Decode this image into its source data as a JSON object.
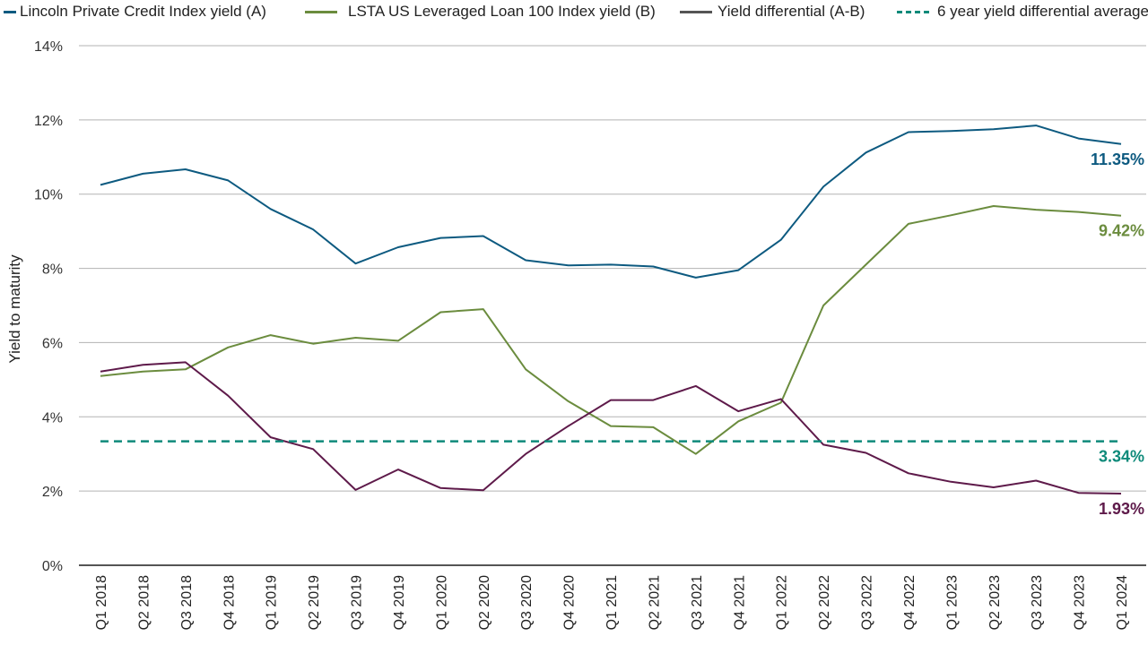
{
  "legend": {
    "items": [
      {
        "label": "Lincoln Private Credit Index yield (A)",
        "color": "#0d5a80",
        "style": "solid"
      },
      {
        "label": "LSTA US Leveraged Loan 100 Index yield (B)",
        "color": "#6b8c3e",
        "style": "solid"
      },
      {
        "label": "Yield differential (A-B)",
        "color": "#555555",
        "style": "solid"
      },
      {
        "label": "6 year yield differential average",
        "color": "#0e8a7a",
        "style": "dashed"
      }
    ]
  },
  "chart_data": {
    "type": "line",
    "ylabel": "Yield to maturity",
    "xlabel": "",
    "ylim": [
      0,
      14
    ],
    "yticks": [
      "0%",
      "2%",
      "4%",
      "6%",
      "8%",
      "10%",
      "12%",
      "14%"
    ],
    "categories": [
      "Q1 2018",
      "Q2 2018",
      "Q3 2018",
      "Q4 2018",
      "Q1 2019",
      "Q2 2019",
      "Q3 2019",
      "Q4 2019",
      "Q1 2020",
      "Q2 2020",
      "Q3 2020",
      "Q4 2020",
      "Q1 2021",
      "Q2 2021",
      "Q3 2021",
      "Q4 2021",
      "Q1 2022",
      "Q2 2022",
      "Q3 2022",
      "Q4 2022",
      "Q1 2023",
      "Q2 2023",
      "Q3 2023",
      "Q4 2023",
      "Q1 2024"
    ],
    "grid": true,
    "legend_position": "top",
    "series": [
      {
        "name": "Lincoln Private Credit Index yield (A)",
        "color": "#0d5a80",
        "end_label": "11.35%",
        "values": [
          10.25,
          10.55,
          10.67,
          10.37,
          9.6,
          9.05,
          8.13,
          8.57,
          8.82,
          8.87,
          8.22,
          8.08,
          8.1,
          8.05,
          7.75,
          7.95,
          8.77,
          10.2,
          11.12,
          11.67,
          11.7,
          11.75,
          11.85,
          11.5,
          11.35
        ]
      },
      {
        "name": "LSTA US Leveraged Loan 100 Index yield (B)",
        "color": "#6b8c3e",
        "end_label": "9.42%",
        "values": [
          5.1,
          5.22,
          5.28,
          5.87,
          6.2,
          5.97,
          6.13,
          6.05,
          6.82,
          6.9,
          5.28,
          4.42,
          3.75,
          3.72,
          3.0,
          3.88,
          4.38,
          7.0,
          8.1,
          9.2,
          9.43,
          9.68,
          9.58,
          9.52,
          9.42
        ]
      },
      {
        "name": "Yield differential (A-B)",
        "color": "#5e1a4a",
        "end_label": "1.93%",
        "values": [
          5.22,
          5.4,
          5.47,
          4.57,
          3.45,
          3.13,
          2.03,
          2.58,
          2.08,
          2.02,
          3.0,
          3.75,
          4.45,
          4.45,
          4.83,
          4.15,
          4.48,
          3.25,
          3.03,
          2.48,
          2.25,
          2.1,
          2.28,
          1.95,
          1.93
        ]
      },
      {
        "name": "6 year yield differential average",
        "color": "#0e8a7a",
        "dashed": true,
        "end_label": "3.34%",
        "values": [
          3.34,
          3.34,
          3.34,
          3.34,
          3.34,
          3.34,
          3.34,
          3.34,
          3.34,
          3.34,
          3.34,
          3.34,
          3.34,
          3.34,
          3.34,
          3.34,
          3.34,
          3.34,
          3.34,
          3.34,
          3.34,
          3.34,
          3.34,
          3.34,
          3.34
        ]
      }
    ]
  }
}
